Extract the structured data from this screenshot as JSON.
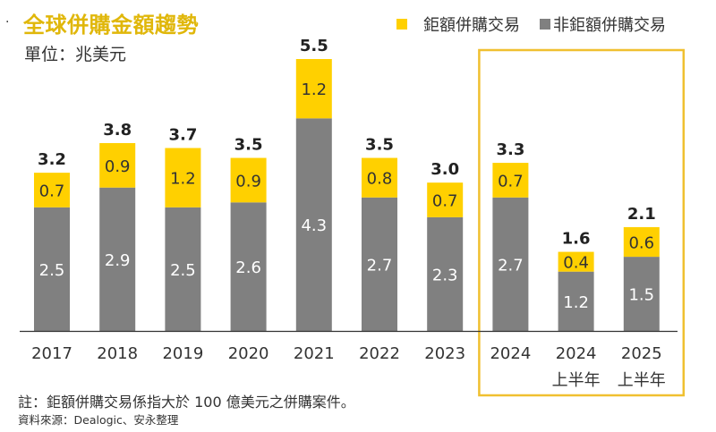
{
  "header": {
    "bullet": "·",
    "title": "全球併購金額趨勢",
    "unit": "單位：兆美元"
  },
  "legend": {
    "items": [
      {
        "label": "鉅額併購交易",
        "color": "#ffd000"
      },
      {
        "label": "非鉅額併購交易",
        "color": "#808080"
      }
    ]
  },
  "footer": {
    "note": "註：鉅額併購交易係指大於 100 億美元之併購案件。",
    "source": "資料來源：Dealogic、安永整理"
  },
  "chart_data": {
    "type": "bar",
    "stacked": true,
    "title": "全球併購金額趨勢",
    "ylabel": "單位：兆美元",
    "xlabel": "",
    "ylim": [
      0,
      5.5
    ],
    "grid": false,
    "legend_position": "top-right",
    "categories": [
      {
        "line1": "2017",
        "line2": ""
      },
      {
        "line1": "2018",
        "line2": ""
      },
      {
        "line1": "2019",
        "line2": ""
      },
      {
        "line1": "2020",
        "line2": ""
      },
      {
        "line1": "2021",
        "line2": ""
      },
      {
        "line1": "2022",
        "line2": ""
      },
      {
        "line1": "2023",
        "line2": ""
      },
      {
        "line1": "2024",
        "line2": ""
      },
      {
        "line1": "2024",
        "line2": "上半年"
      },
      {
        "line1": "2025",
        "line2": "上半年"
      }
    ],
    "series": [
      {
        "name": "非鉅額併購交易",
        "color": "#808080",
        "label_color": "#ffffff",
        "values": [
          2.5,
          2.9,
          2.5,
          2.6,
          4.3,
          2.7,
          2.3,
          2.7,
          1.2,
          1.5
        ]
      },
      {
        "name": "鉅額併購交易",
        "color": "#ffd000",
        "label_color": "#333333",
        "values": [
          0.7,
          0.9,
          1.2,
          0.9,
          1.2,
          0.8,
          0.7,
          0.7,
          0.4,
          0.6
        ]
      }
    ],
    "totals": [
      "3.2",
      "3.8",
      "3.7",
      "3.5",
      "5.5",
      "3.5",
      "3.0",
      "3.3",
      "1.6",
      "2.1"
    ],
    "highlight": {
      "categories_index_range": [
        7,
        9
      ],
      "color": "#f0c030"
    }
  }
}
